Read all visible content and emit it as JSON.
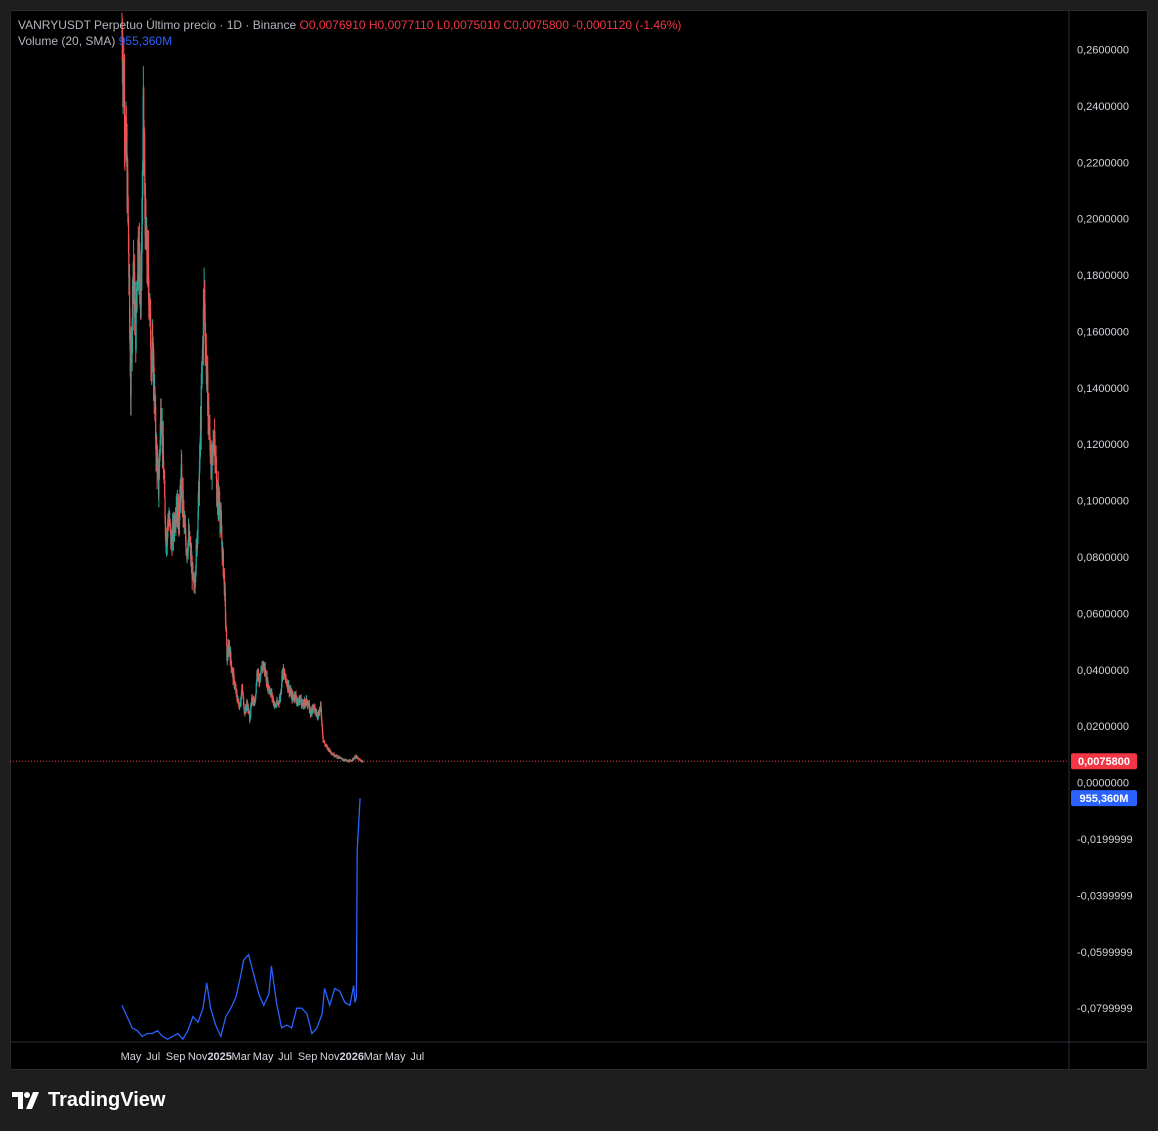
{
  "legend": {
    "symbol": "VANRYUSDT Perpetuo",
    "chart_title": "Último precio · 1D · Binance",
    "open": "O0,0076910",
    "high": "H0,0077110",
    "low": "L0,0075010",
    "close": "C0,0075800",
    "change": "-0,0001120 (-1.46%)",
    "volume_label": "Volume (20, SMA)",
    "volume_value": "955,360M"
  },
  "price_badge": "0,0075800",
  "volume_badge": "955,360M",
  "footer": {
    "brand": "TradingView"
  },
  "colors": {
    "up": "#26a69a",
    "down": "#ef5350",
    "volume_line": "#2962ff",
    "badge_price": "#f23645",
    "badge_volume": "#2962ff"
  },
  "chart_data": {
    "type": "candlestick",
    "x_tick_labels": [
      "May",
      "Jul",
      "Sep",
      "Nov",
      "2025",
      "Mar",
      "May",
      "Jul",
      "Sep",
      "Nov",
      "2026",
      "Mar",
      "May",
      "Jul"
    ],
    "y_tick_labels": [
      "0,2600000",
      "0,2400000",
      "0,2200000",
      "0,2000000",
      "0,1800000",
      "0,1600000",
      "0,1400000",
      "0,1200000",
      "0,1000000",
      "0,0800000",
      "0,0600000",
      "0,0400000",
      "0,0200000",
      "0,0000000",
      "-0,0199999",
      "-0,0399999",
      "-0,0599999",
      "-0,0799999"
    ],
    "ylim": [
      -0.092,
      0.274
    ],
    "price_series": {
      "name": "VANRYUSDT",
      "points": [
        [
          "2024-04-06",
          0.265
        ],
        [
          "2024-04-14",
          0.238
        ],
        [
          "2024-04-22",
          0.205
        ],
        [
          "2024-04-30",
          0.14
        ],
        [
          "2024-05-07",
          0.185
        ],
        [
          "2024-05-14",
          0.16
        ],
        [
          "2024-05-21",
          0.195
        ],
        [
          "2024-05-28",
          0.17
        ],
        [
          "2024-06-04",
          0.235
        ],
        [
          "2024-06-11",
          0.19
        ],
        [
          "2024-06-18",
          0.18
        ],
        [
          "2024-06-25",
          0.155
        ],
        [
          "2024-07-02",
          0.148
        ],
        [
          "2024-07-09",
          0.12
        ],
        [
          "2024-07-16",
          0.105
        ],
        [
          "2024-07-23",
          0.135
        ],
        [
          "2024-07-30",
          0.11
        ],
        [
          "2024-08-06",
          0.085
        ],
        [
          "2024-08-13",
          0.095
        ],
        [
          "2024-08-20",
          0.085
        ],
        [
          "2024-08-27",
          0.09
        ],
        [
          "2024-09-03",
          0.1
        ],
        [
          "2024-09-10",
          0.093
        ],
        [
          "2024-09-17",
          0.108
        ],
        [
          "2024-09-24",
          0.093
        ],
        [
          "2024-10-01",
          0.083
        ],
        [
          "2024-10-08",
          0.087
        ],
        [
          "2024-10-15",
          0.078
        ],
        [
          "2024-10-22",
          0.068
        ],
        [
          "2024-10-29",
          0.083
        ],
        [
          "2024-11-05",
          0.105
        ],
        [
          "2024-11-12",
          0.14
        ],
        [
          "2024-11-19",
          0.175
        ],
        [
          "2024-11-26",
          0.145
        ],
        [
          "2024-12-03",
          0.125
        ],
        [
          "2024-12-10",
          0.11
        ],
        [
          "2024-12-17",
          0.125
        ],
        [
          "2024-12-24",
          0.103
        ],
        [
          "2024-12-31",
          0.1
        ],
        [
          "2025-01-07",
          0.085
        ],
        [
          "2025-01-14",
          0.07
        ],
        [
          "2025-01-21",
          0.045
        ],
        [
          "2025-01-28",
          0.048
        ],
        [
          "2025-02-04",
          0.04
        ],
        [
          "2025-02-11",
          0.035
        ],
        [
          "2025-02-18",
          0.03
        ],
        [
          "2025-02-25",
          0.027
        ],
        [
          "2025-03-04",
          0.033
        ],
        [
          "2025-03-11",
          0.025
        ],
        [
          "2025-03-18",
          0.028
        ],
        [
          "2025-03-25",
          0.023
        ],
        [
          "2025-04-01",
          0.03
        ],
        [
          "2025-04-08",
          0.028
        ],
        [
          "2025-04-15",
          0.04
        ],
        [
          "2025-04-22",
          0.035
        ],
        [
          "2025-04-29",
          0.042
        ],
        [
          "2025-05-06",
          0.04
        ],
        [
          "2025-05-13",
          0.035
        ],
        [
          "2025-05-20",
          0.033
        ],
        [
          "2025-05-27",
          0.03
        ],
        [
          "2025-06-03",
          0.027
        ],
        [
          "2025-06-10",
          0.028
        ],
        [
          "2025-06-17",
          0.03
        ],
        [
          "2025-06-24",
          0.04
        ],
        [
          "2025-07-01",
          0.037
        ],
        [
          "2025-07-08",
          0.035
        ],
        [
          "2025-07-15",
          0.032
        ],
        [
          "2025-07-22",
          0.03
        ],
        [
          "2025-07-29",
          0.031
        ],
        [
          "2025-08-05",
          0.028
        ],
        [
          "2025-08-12",
          0.03
        ],
        [
          "2025-08-19",
          0.027
        ],
        [
          "2025-08-26",
          0.029
        ],
        [
          "2025-09-02",
          0.028
        ],
        [
          "2025-09-09",
          0.025
        ],
        [
          "2025-09-16",
          0.027
        ],
        [
          "2025-09-23",
          0.025
        ],
        [
          "2025-09-30",
          0.024
        ],
        [
          "2025-10-07",
          0.027
        ],
        [
          "2025-10-14",
          0.015
        ],
        [
          "2025-10-21",
          0.013
        ],
        [
          "2025-10-28",
          0.012
        ],
        [
          "2025-11-04",
          0.011
        ],
        [
          "2025-11-11",
          0.01
        ],
        [
          "2025-11-18",
          0.0095
        ],
        [
          "2025-11-25",
          0.009
        ],
        [
          "2025-12-02",
          0.0085
        ],
        [
          "2025-12-09",
          0.0082
        ],
        [
          "2025-12-16",
          0.0078
        ],
        [
          "2025-12-23",
          0.0076
        ],
        [
          "2025-12-30",
          0.0078
        ],
        [
          "2026-01-06",
          0.0085
        ],
        [
          "2026-01-13",
          0.0093
        ],
        [
          "2026-01-20",
          0.0082
        ],
        [
          "2026-01-27",
          0.0077
        ],
        [
          "2026-02-01",
          0.00758
        ]
      ]
    },
    "volume_sma_series": {
      "name": "Volume (20, SMA)",
      "points": [
        [
          "2024-04-06",
          -0.079
        ],
        [
          "2024-04-20",
          -0.083
        ],
        [
          "2024-05-04",
          -0.087
        ],
        [
          "2024-05-18",
          -0.088
        ],
        [
          "2024-06-01",
          -0.09
        ],
        [
          "2024-06-15",
          -0.089
        ],
        [
          "2024-06-29",
          -0.089
        ],
        [
          "2024-07-13",
          -0.088
        ],
        [
          "2024-07-27",
          -0.09
        ],
        [
          "2024-08-10",
          -0.091
        ],
        [
          "2024-08-24",
          -0.09
        ],
        [
          "2024-09-07",
          -0.089
        ],
        [
          "2024-09-21",
          -0.091
        ],
        [
          "2024-10-05",
          -0.088
        ],
        [
          "2024-10-19",
          -0.083
        ],
        [
          "2024-11-02",
          -0.085
        ],
        [
          "2024-11-16",
          -0.08
        ],
        [
          "2024-11-26",
          -0.071
        ],
        [
          "2024-12-07",
          -0.08
        ],
        [
          "2024-12-21",
          -0.086
        ],
        [
          "2025-01-04",
          -0.09
        ],
        [
          "2025-01-18",
          -0.083
        ],
        [
          "2025-02-01",
          -0.08
        ],
        [
          "2025-02-15",
          -0.076
        ],
        [
          "2025-03-01",
          -0.068
        ],
        [
          "2025-03-08",
          -0.063
        ],
        [
          "2025-03-22",
          -0.061
        ],
        [
          "2025-04-05",
          -0.068
        ],
        [
          "2025-04-19",
          -0.075
        ],
        [
          "2025-05-03",
          -0.079
        ],
        [
          "2025-05-17",
          -0.075
        ],
        [
          "2025-05-24",
          -0.065
        ],
        [
          "2025-06-07",
          -0.078
        ],
        [
          "2025-06-21",
          -0.087
        ],
        [
          "2025-07-05",
          -0.086
        ],
        [
          "2025-07-19",
          -0.087
        ],
        [
          "2025-08-02",
          -0.08
        ],
        [
          "2025-08-16",
          -0.08
        ],
        [
          "2025-08-30",
          -0.082
        ],
        [
          "2025-09-13",
          -0.089
        ],
        [
          "2025-09-27",
          -0.087
        ],
        [
          "2025-10-11",
          -0.082
        ],
        [
          "2025-10-18",
          -0.073
        ],
        [
          "2025-11-01",
          -0.079
        ],
        [
          "2025-11-15",
          -0.073
        ],
        [
          "2025-11-29",
          -0.074
        ],
        [
          "2025-12-13",
          -0.078
        ],
        [
          "2025-12-27",
          -0.079
        ],
        [
          "2026-01-06",
          -0.072
        ],
        [
          "2026-01-10",
          -0.078
        ],
        [
          "2026-01-14",
          -0.076
        ],
        [
          "2026-01-16",
          -0.024
        ],
        [
          "2026-01-24",
          -0.0055
        ]
      ]
    },
    "last_price": 0.00758,
    "grid": false,
    "legend_position": "top-left"
  }
}
